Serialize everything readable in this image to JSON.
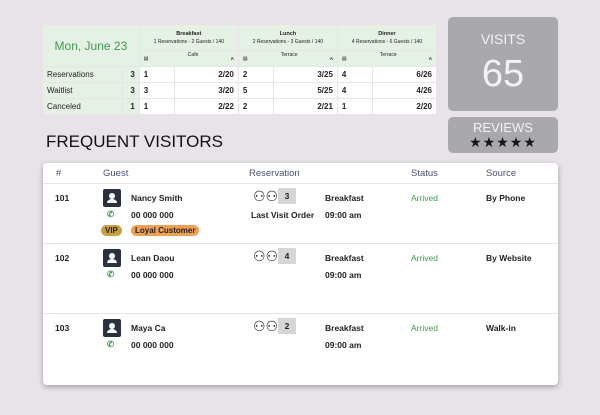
{
  "schedule": {
    "date": "Mon, June 23",
    "meals": [
      {
        "name": "Breakfast",
        "summary": "1 Reservations - 2 Guests / 140",
        "area": "Cafe"
      },
      {
        "name": "Lunch",
        "summary": "2 Reservations - 3 Guests / 140",
        "area": "Terrace"
      },
      {
        "name": "Dinner",
        "summary": "4 Reservations - 6 Guests / 140",
        "area": "Terrace"
      }
    ],
    "rows": [
      {
        "label": "Reservations",
        "total": "3",
        "cells": [
          [
            "1",
            "2/20"
          ],
          [
            "2",
            "3/25"
          ],
          [
            "4",
            "6/26"
          ]
        ]
      },
      {
        "label": "Waitlist",
        "total": "3",
        "cells": [
          [
            "3",
            "3/20"
          ],
          [
            "5",
            "5/25"
          ],
          [
            "4",
            "4/26"
          ]
        ]
      },
      {
        "label": "Canceled",
        "total": "1",
        "cells": [
          [
            "1",
            "2/22"
          ],
          [
            "2",
            "2/21"
          ],
          [
            "1",
            "2/20"
          ]
        ]
      }
    ]
  },
  "visits": {
    "label": "VISITS",
    "value": "65"
  },
  "reviews": {
    "label": "REVIEWS",
    "stars": 5
  },
  "title": "FREQUENT VISITORS",
  "columns": [
    "#",
    "Guest",
    "Reservation",
    "Status",
    "Source"
  ],
  "visitors": [
    {
      "id": "101",
      "name": "Nancy Smith",
      "phone": "00 000 000",
      "guests": "3",
      "note": "Last Visit Order",
      "meal": "Breakfast",
      "time": "09:00 am",
      "status": "Arrived",
      "source": "By Phone",
      "tags": [
        "VIP",
        "Loyal Customer"
      ]
    },
    {
      "id": "102",
      "name": "Lean Daou",
      "phone": "00 000 000",
      "guests": "4",
      "meal": "Breakfast",
      "time": "09:00 am",
      "status": "Arrived",
      "source": "By Website"
    },
    {
      "id": "103",
      "name": "Maya Ca",
      "phone": "00 000 000",
      "guests": "2",
      "meal": "Breakfast",
      "time": "09:00 am",
      "status": "Arrived",
      "source": "Walk-in"
    }
  ],
  "colors": {
    "green": "#3e9a4e",
    "vip": "#c9a03e",
    "loyal": "#f0a055"
  }
}
